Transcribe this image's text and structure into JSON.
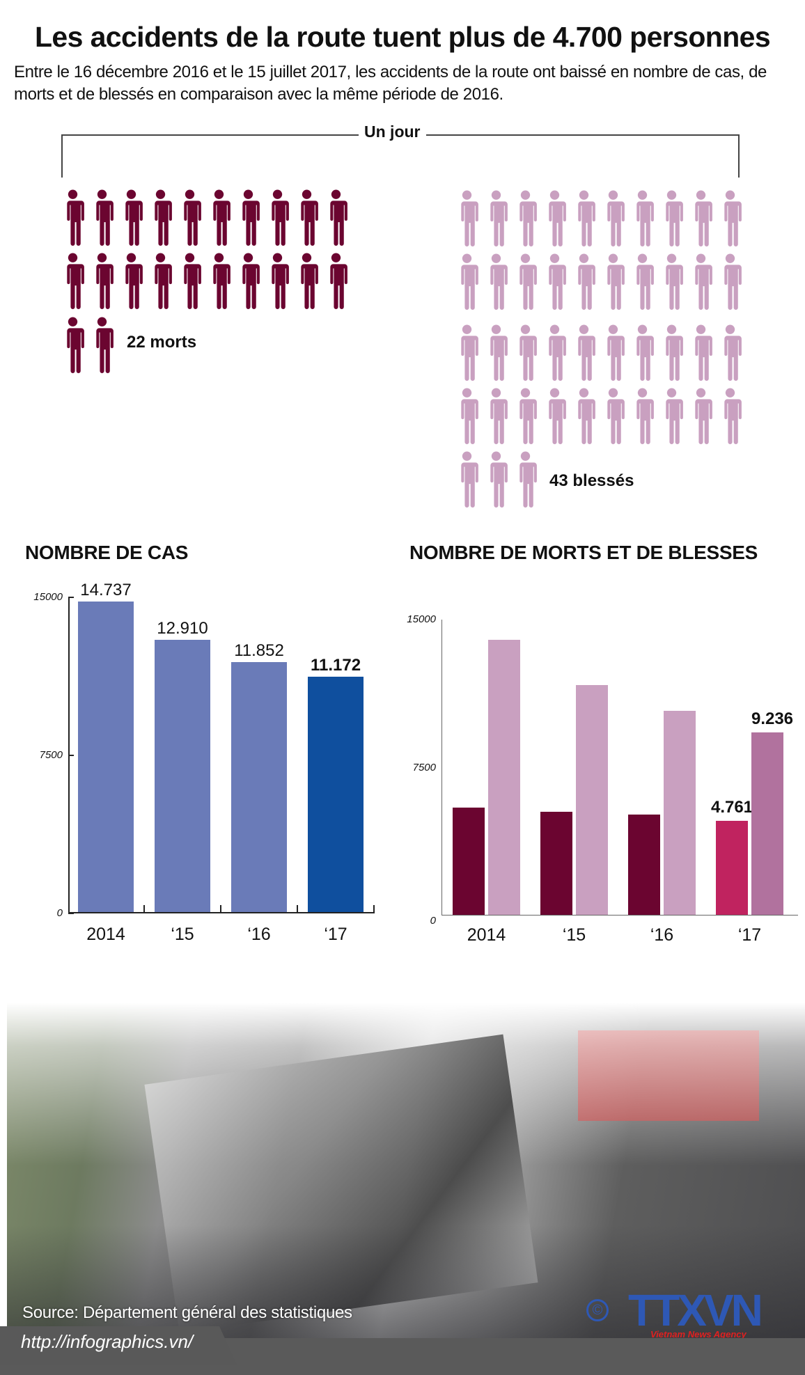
{
  "header": {
    "title": "Les accidents de la route tuent plus de 4.700 personnes",
    "subtitle": "Entre le 16 décembre 2016 et le 15 juillet 2017, les accidents de la route ont baissé en nombre de cas, de morts et de blessés en comparaison avec la même période de 2016."
  },
  "per_day": {
    "label": "Un jour",
    "deaths": {
      "count": 22,
      "label": "22 morts",
      "color": "#6b0530",
      "icon": "person-icon"
    },
    "injured": {
      "count": 43,
      "label": "43 blessés",
      "color": "#c9a0c0",
      "icon": "person-icon"
    }
  },
  "chart_data": [
    {
      "type": "bar",
      "title": "NOMBRE DE CAS",
      "categories": [
        "2014",
        "‘15",
        "‘16",
        "‘17"
      ],
      "values": [
        14737,
        12910,
        11852,
        11172
      ],
      "value_labels": [
        "14.737",
        "12.910",
        "11.852",
        "11.172"
      ],
      "colors": [
        "#6a7bb8",
        "#6a7bb8",
        "#6a7bb8",
        "#0f4f9e"
      ],
      "ylim": [
        0,
        15000
      ],
      "yticks": [
        "0",
        "7500",
        "15000"
      ],
      "xlabel": "",
      "ylabel": "",
      "grid": false,
      "legend": null
    },
    {
      "type": "bar",
      "title": "NOMBRE DE MORTS ET DE BLESSES",
      "categories": [
        "2014",
        "‘15",
        "‘16",
        "‘17"
      ],
      "series": [
        {
          "name": "Morts",
          "values": [
            5450,
            5230,
            5090,
            4761
          ],
          "colors": [
            "#6b0530",
            "#6b0530",
            "#6b0530",
            "#c0235f"
          ],
          "labels": [
            "",
            "",
            "",
            "4.761"
          ]
        },
        {
          "name": "Blessés",
          "values": [
            13950,
            11630,
            10330,
            9236
          ],
          "colors": [
            "#c9a0c0",
            "#c9a0c0",
            "#c9a0c0",
            "#b1729e"
          ],
          "labels": [
            "",
            "",
            "",
            "9.236"
          ]
        }
      ],
      "ylim": [
        0,
        15000
      ],
      "yticks": [
        "0",
        "7500",
        "15000"
      ],
      "xlabel": "",
      "ylabel": "",
      "grid": false,
      "legend": null
    }
  ],
  "footer": {
    "source": "Source: Département général des statistiques",
    "url": "http://infographics.vn/",
    "logo_text": "TTXVN",
    "logo_sub": "Vietnam News Agency",
    "copyright_symbol": "©"
  }
}
